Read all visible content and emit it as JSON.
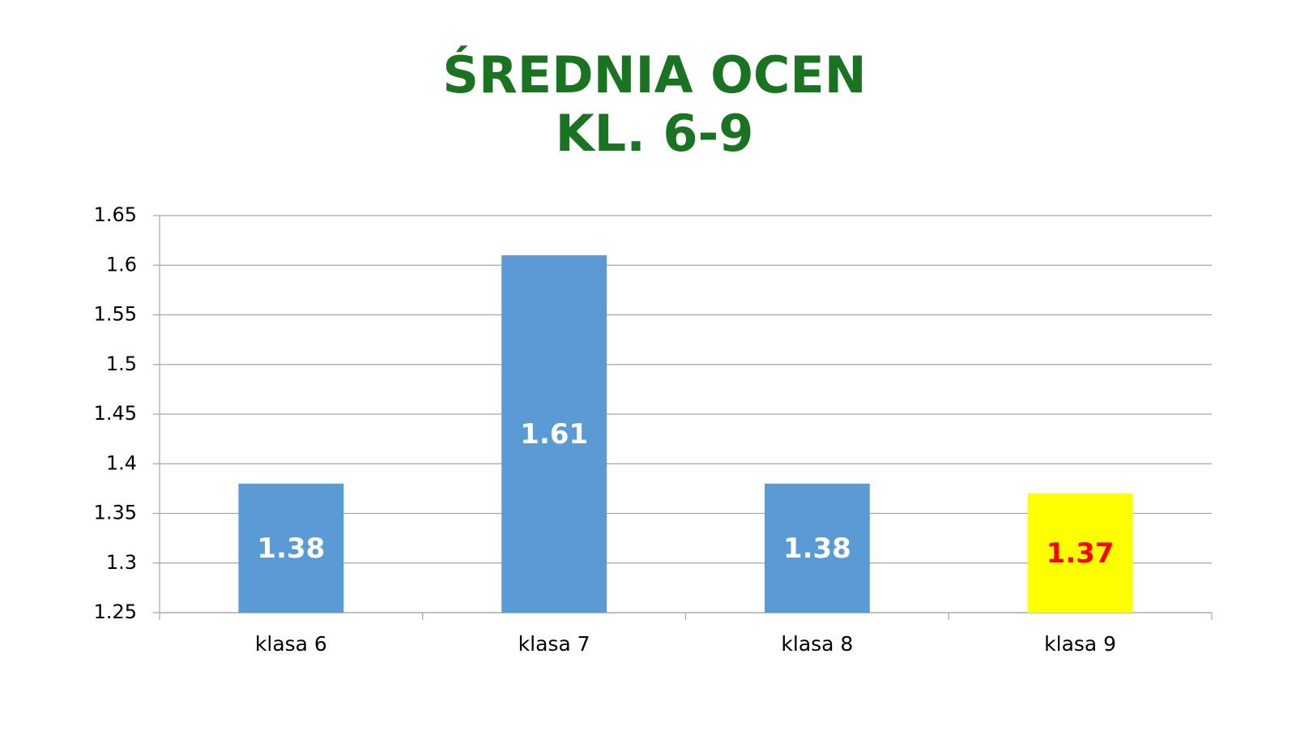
{
  "chart_data": {
    "type": "bar",
    "title": [
      "ŚREDNIA OCEN",
      "KL. 6-9"
    ],
    "categories": [
      "klasa 6",
      "klasa 7",
      "klasa 8",
      "klasa 9"
    ],
    "values": [
      1.38,
      1.61,
      1.38,
      1.37
    ],
    "colors": [
      "#5b9bd5",
      "#5b9bd5",
      "#5b9bd5",
      "#ffff00"
    ],
    "label_colors": [
      "#ffffff",
      "#ffffff",
      "#ffffff",
      "#ff0000"
    ],
    "ylim": [
      1.25,
      1.65
    ],
    "yticks": [
      1.25,
      1.3,
      1.35,
      1.4,
      1.45,
      1.5,
      1.55,
      1.6,
      1.65
    ],
    "grid": true
  }
}
